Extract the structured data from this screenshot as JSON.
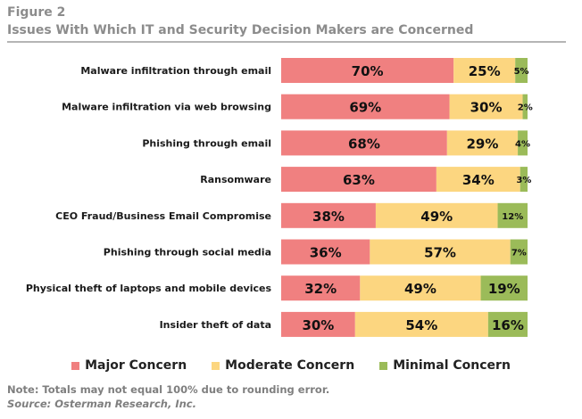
{
  "figure": {
    "label": "Figure 2",
    "title": "Issues With Which IT and Security Decision Makers are Concerned"
  },
  "colors": {
    "major": "#f08080",
    "moderate": "#fcd680",
    "minimal": "#9bbb59",
    "rule": "#b5b5b5",
    "title_gray": "#8c8c8c"
  },
  "chart_data": {
    "type": "bar",
    "orientation": "horizontal",
    "stacked": true,
    "categories": [
      "Malware infiltration through email",
      "Malware infiltration via web browsing",
      "Phishing through email",
      "Ransomware",
      "CEO Fraud/Business Email Compromise",
      "Phishing through social media",
      "Physical theft of laptops and mobile devices",
      "Insider theft of data"
    ],
    "series": [
      {
        "name": "Major Concern",
        "values": [
          70,
          69,
          68,
          63,
          38,
          36,
          32,
          30
        ]
      },
      {
        "name": "Moderate Concern",
        "values": [
          25,
          30,
          29,
          34,
          49,
          57,
          49,
          54
        ]
      },
      {
        "name": "Minimal Concern",
        "values": [
          5,
          2,
          4,
          3,
          12,
          7,
          19,
          16
        ]
      }
    ],
    "value_suffix": "%",
    "legend_position": "bottom",
    "grid": false
  },
  "footer": {
    "note": "Note: Totals may not equal 100% due to rounding error.",
    "source": "Source: Osterman Research, Inc."
  }
}
